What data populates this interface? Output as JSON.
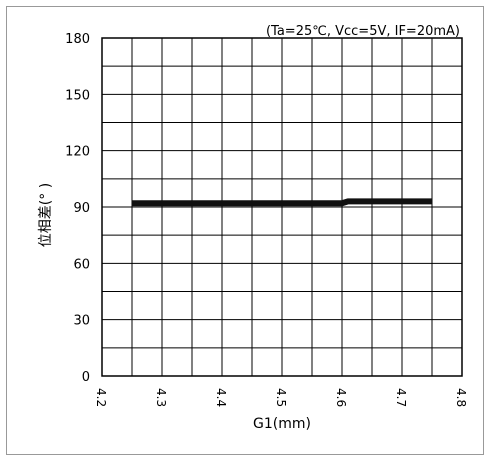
{
  "chart_data": {
    "type": "line",
    "title": "",
    "annotation": "(Ta=25℃, Vcc=5V, IF=20mA)",
    "xlabel": "G1(mm)",
    "ylabel": "位相差(° )",
    "xlim": [
      4.2,
      4.8
    ],
    "ylim": [
      0,
      180
    ],
    "x_ticks": [
      "4.2",
      "4.3",
      "4.4",
      "4.5",
      "4.6",
      "4.7",
      "4.8"
    ],
    "y_ticks": [
      "0",
      "30",
      "60",
      "90",
      "120",
      "150",
      "180"
    ],
    "grid": true,
    "series": [
      {
        "x": [
          4.25,
          4.3,
          4.35,
          4.4,
          4.45,
          4.5,
          4.55,
          4.6,
          4.61,
          4.65,
          4.7,
          4.75
        ],
        "y": [
          92,
          92,
          92,
          92,
          92,
          92,
          92,
          92,
          93,
          93,
          93,
          93
        ],
        "color": "#111111"
      }
    ]
  }
}
